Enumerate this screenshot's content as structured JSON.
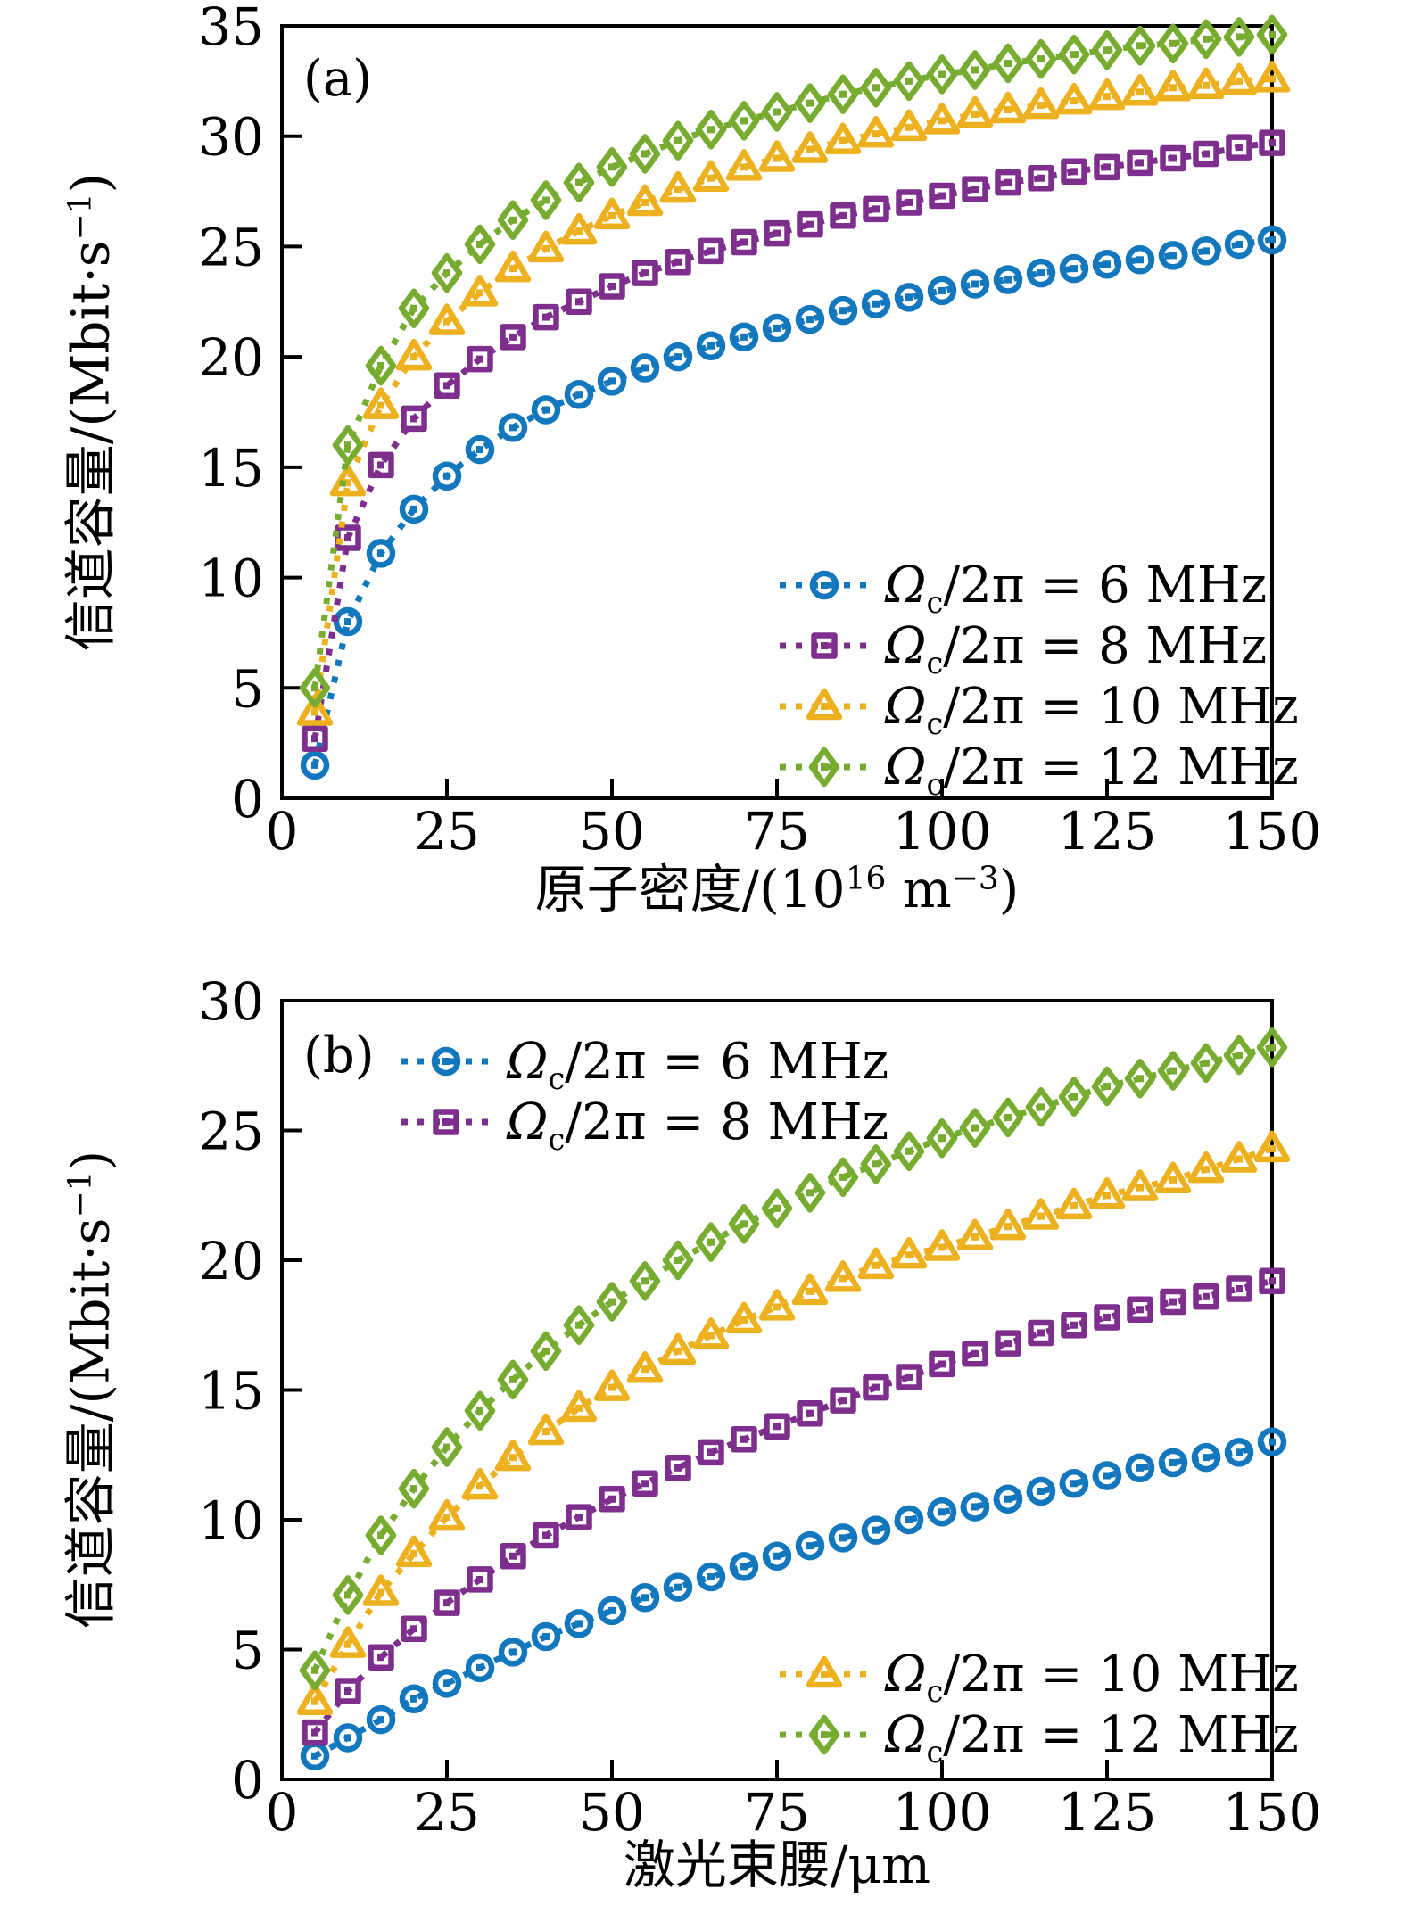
{
  "figure": {
    "background": "#ffffff",
    "text_color": "#000000"
  },
  "panels": [
    {
      "tag": "(a)",
      "ylabel": {
        "pre": "信道容量/(Mbit·s",
        "sup": "−1",
        "post": ")"
      },
      "xlabel": {
        "pre": "原子密度/(10",
        "sup1": "16",
        "mid": " m",
        "sup2": "−3",
        "post": ")"
      }
    },
    {
      "tag": "(b)",
      "ylabel": {
        "pre": "信道容量/(Mbit·s",
        "sup": "−1",
        "post": ")"
      },
      "xlabel": {
        "pre": "激光束腰/μm",
        "sup1": "",
        "mid": "",
        "sup2": "",
        "post": ""
      }
    }
  ],
  "chart_data": [
    {
      "type": "line",
      "panel": "(a)",
      "xlabel": "原子密度/(10^16 m^-3)",
      "ylabel": "信道容量/(Mbit·s^-1)",
      "xlim": [
        0,
        150
      ],
      "ylim": [
        0,
        35
      ],
      "xticks": [
        0,
        25,
        50,
        75,
        100,
        125,
        150
      ],
      "yticks": [
        0,
        5,
        10,
        15,
        20,
        25,
        30,
        35
      ],
      "grid": false,
      "line_style": "dotted",
      "legend_position": "inside lower right",
      "x": [
        5,
        10,
        15,
        20,
        25,
        30,
        35,
        40,
        45,
        50,
        55,
        60,
        65,
        70,
        75,
        80,
        85,
        90,
        95,
        100,
        105,
        110,
        115,
        120,
        125,
        130,
        135,
        140,
        145,
        150
      ],
      "series": [
        {
          "id": "omega-6mhz",
          "name": "Ωc/2π = 6 MHz",
          "label_omega": "Ω",
          "label_sub": "c",
          "label_rest": "/2π = 6 MHz",
          "marker": "circle",
          "color": "#1277BD",
          "values": [
            1.5,
            8.0,
            11.1,
            13.1,
            14.6,
            15.8,
            16.8,
            17.6,
            18.3,
            18.9,
            19.5,
            20.0,
            20.5,
            20.9,
            21.3,
            21.7,
            22.1,
            22.4,
            22.7,
            23.0,
            23.3,
            23.5,
            23.8,
            24.0,
            24.2,
            24.4,
            24.6,
            24.8,
            25.1,
            25.3
          ]
        },
        {
          "id": "omega-8mhz",
          "name": "Ωc/2π = 8 MHz",
          "label_omega": "Ω",
          "label_sub": "c",
          "label_rest": "/2π = 8 MHz",
          "marker": "square",
          "color": "#7E2F8E",
          "values": [
            2.7,
            11.8,
            15.1,
            17.2,
            18.7,
            19.9,
            20.9,
            21.8,
            22.5,
            23.2,
            23.8,
            24.3,
            24.8,
            25.2,
            25.6,
            26.0,
            26.4,
            26.7,
            27.0,
            27.3,
            27.6,
            27.9,
            28.1,
            28.4,
            28.6,
            28.8,
            29.0,
            29.2,
            29.5,
            29.7
          ]
        },
        {
          "id": "omega-10mhz",
          "name": "Ωc/2π = 10 MHz",
          "label_omega": "Ω",
          "label_sub": "c",
          "label_rest": "/2π = 10 MHz",
          "marker": "triangle",
          "color": "#EDB120",
          "values": [
            3.9,
            14.3,
            17.8,
            20.0,
            21.6,
            22.9,
            24.0,
            24.9,
            25.7,
            26.4,
            27.0,
            27.6,
            28.1,
            28.6,
            29.0,
            29.4,
            29.8,
            30.1,
            30.4,
            30.7,
            31.0,
            31.2,
            31.4,
            31.6,
            31.8,
            32.0,
            32.2,
            32.3,
            32.5,
            32.6
          ]
        },
        {
          "id": "omega-12mhz",
          "name": "Ωc/2π = 12 MHz",
          "label_omega": "Ω",
          "label_sub": "c",
          "label_rest": "/2π = 12 MHz",
          "marker": "diamond",
          "color": "#77AC30",
          "values": [
            5.0,
            16.0,
            19.6,
            22.2,
            23.8,
            25.1,
            26.2,
            27.1,
            27.9,
            28.6,
            29.2,
            29.8,
            30.3,
            30.7,
            31.1,
            31.5,
            31.9,
            32.2,
            32.5,
            32.8,
            33.0,
            33.3,
            33.5,
            33.7,
            33.9,
            34.1,
            34.2,
            34.4,
            34.5,
            34.6
          ]
        }
      ]
    },
    {
      "type": "line",
      "panel": "(b)",
      "xlabel": "激光束腰/μm",
      "ylabel": "信道容量/(Mbit·s^-1)",
      "xlim": [
        0,
        150
      ],
      "ylim": [
        0,
        30
      ],
      "xticks": [
        0,
        25,
        50,
        75,
        100,
        125,
        150
      ],
      "yticks": [
        0,
        5,
        10,
        15,
        20,
        25,
        30
      ],
      "grid": false,
      "line_style": "dotted",
      "legend_position": "split: 6/8 MHz inside upper left, 10/12 MHz inside lower right",
      "x": [
        5,
        10,
        15,
        20,
        25,
        30,
        35,
        40,
        45,
        50,
        55,
        60,
        65,
        70,
        75,
        80,
        85,
        90,
        95,
        100,
        105,
        110,
        115,
        120,
        125,
        130,
        135,
        140,
        145,
        150
      ],
      "series": [
        {
          "id": "omega-6mhz",
          "name": "Ωc/2π = 6 MHz",
          "label_omega": "Ω",
          "label_sub": "c",
          "label_rest": "/2π = 6 MHz",
          "marker": "circle",
          "color": "#1277BD",
          "values": [
            0.9,
            1.6,
            2.3,
            3.1,
            3.7,
            4.3,
            4.9,
            5.5,
            6.0,
            6.5,
            7.0,
            7.4,
            7.8,
            8.2,
            8.6,
            9.0,
            9.3,
            9.6,
            10.0,
            10.3,
            10.5,
            10.8,
            11.1,
            11.4,
            11.7,
            12.0,
            12.2,
            12.4,
            12.6,
            13.0
          ]
        },
        {
          "id": "omega-8mhz",
          "name": "Ωc/2π = 8 MHz",
          "label_omega": "Ω",
          "label_sub": "c",
          "label_rest": "/2π = 8 MHz",
          "marker": "square",
          "color": "#7E2F8E",
          "values": [
            1.8,
            3.4,
            4.7,
            5.8,
            6.8,
            7.7,
            8.6,
            9.4,
            10.1,
            10.8,
            11.4,
            12.0,
            12.6,
            13.1,
            13.6,
            14.1,
            14.6,
            15.1,
            15.5,
            16.0,
            16.4,
            16.8,
            17.2,
            17.5,
            17.8,
            18.1,
            18.4,
            18.6,
            18.9,
            19.2
          ]
        },
        {
          "id": "omega-10mhz",
          "name": "Ωc/2π = 10 MHz",
          "label_omega": "Ω",
          "label_sub": "c",
          "label_rest": "/2π = 10 MHz",
          "marker": "triangle",
          "color": "#EDB120",
          "values": [
            3.0,
            5.2,
            7.2,
            8.7,
            10.1,
            11.3,
            12.4,
            13.4,
            14.3,
            15.1,
            15.8,
            16.5,
            17.1,
            17.7,
            18.2,
            18.8,
            19.3,
            19.8,
            20.2,
            20.5,
            20.9,
            21.3,
            21.7,
            22.1,
            22.5,
            22.8,
            23.1,
            23.5,
            23.9,
            24.3
          ]
        },
        {
          "id": "omega-12mhz",
          "name": "Ωc/2π = 12 MHz",
          "label_omega": "Ω",
          "label_sub": "c",
          "label_rest": "/2π = 12 MHz",
          "marker": "diamond",
          "color": "#77AC30",
          "values": [
            4.2,
            7.1,
            9.4,
            11.2,
            12.8,
            14.2,
            15.4,
            16.5,
            17.5,
            18.4,
            19.2,
            20.0,
            20.7,
            21.4,
            22.0,
            22.6,
            23.2,
            23.7,
            24.2,
            24.7,
            25.1,
            25.5,
            25.9,
            26.3,
            26.7,
            27.0,
            27.3,
            27.6,
            27.9,
            28.2
          ]
        }
      ]
    }
  ]
}
